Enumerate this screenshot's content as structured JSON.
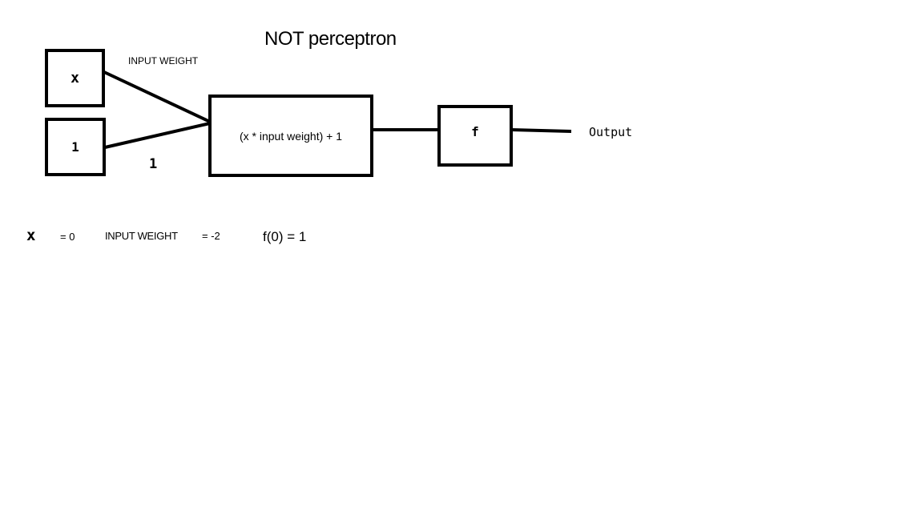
{
  "title": "NOT perceptron",
  "inputs": {
    "x_label": "x",
    "bias_label": "1",
    "weight_label": "INPUT WEIGHT",
    "bias_weight_label": "1"
  },
  "sum_node": {
    "label": "(x * input weight) + 1"
  },
  "activation_node": {
    "label": "f"
  },
  "output_label": "Output",
  "example": {
    "x_symbol": "x",
    "x_value": "= 0",
    "weight_label": "INPUT WEIGHT",
    "weight_value": "= -2",
    "result": "f(0) = 1"
  }
}
